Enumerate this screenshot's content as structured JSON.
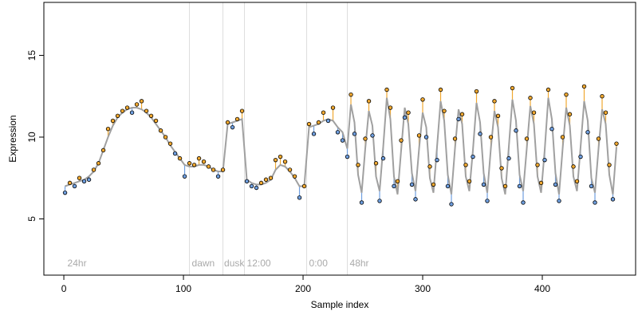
{
  "chart_data": {
    "type": "scatter",
    "x_label": "Sample index",
    "y_label": "Expression",
    "xlim": [
      -16.7,
      478
    ],
    "ylim": [
      1.56,
      18.24
    ],
    "xticks": [
      0,
      100,
      200,
      300,
      400
    ],
    "yticks": [
      5,
      10,
      15
    ],
    "x": [
      1,
      5,
      9,
      13,
      17,
      21,
      25,
      29,
      33,
      37,
      41,
      45,
      49,
      53,
      57,
      61,
      65,
      69,
      73,
      77,
      81,
      85,
      89,
      93,
      97,
      101,
      105,
      109,
      113,
      117,
      121,
      125,
      129,
      133,
      137,
      141,
      145,
      149,
      153,
      157,
      161,
      165,
      169,
      173,
      177,
      181,
      185,
      189,
      193,
      197,
      201,
      205,
      209,
      213,
      217,
      221,
      225,
      229,
      233,
      237,
      240,
      243,
      246,
      249,
      252,
      255,
      258,
      261,
      264,
      267,
      270,
      273,
      276,
      279,
      282,
      285,
      288,
      291,
      294,
      297,
      300,
      303,
      306,
      309,
      312,
      315,
      318,
      321,
      324,
      327,
      330,
      333,
      336,
      339,
      342,
      345,
      348,
      351,
      354,
      357,
      360,
      363,
      366,
      369,
      372,
      375,
      378,
      381,
      384,
      387,
      390,
      393,
      396,
      399,
      402,
      405,
      408,
      411,
      414,
      417,
      420,
      423,
      426,
      429,
      432,
      435,
      438,
      441,
      444,
      447,
      450,
      453,
      456,
      459,
      462
    ],
    "values": [
      6.6,
      7.2,
      7.0,
      7.5,
      7.3,
      7.4,
      8.0,
      8.4,
      9.2,
      10.5,
      11.0,
      11.3,
      11.6,
      11.8,
      11.5,
      12.0,
      12.2,
      11.6,
      11.3,
      11.0,
      10.4,
      10.0,
      9.6,
      9.0,
      8.7,
      7.6,
      8.4,
      8.3,
      8.7,
      8.5,
      8.2,
      8.0,
      7.6,
      8.0,
      10.9,
      10.6,
      11.1,
      11.6,
      7.3,
      7.0,
      6.9,
      7.2,
      7.4,
      7.5,
      8.6,
      8.8,
      8.5,
      8.0,
      7.6,
      6.3,
      7.0,
      10.8,
      10.2,
      10.9,
      11.5,
      11.0,
      11.8,
      10.3,
      9.8,
      8.8,
      12.6,
      10.2,
      8.3,
      6.0,
      9.9,
      12.2,
      10.1,
      8.4,
      6.1,
      8.7,
      12.9,
      11.8,
      7.0,
      7.3,
      9.8,
      11.2,
      11.5,
      7.1,
      6.2,
      10.1,
      12.3,
      10.0,
      8.2,
      7.1,
      8.6,
      12.9,
      11.6,
      7.0,
      5.9,
      9.9,
      11.1,
      11.4,
      8.3,
      7.3,
      8.8,
      12.8,
      10.2,
      7.1,
      6.1,
      10.0,
      12.2,
      11.3,
      8.1,
      7.0,
      8.7,
      13.0,
      10.4,
      7.0,
      6.0,
      9.9,
      12.4,
      11.5,
      8.3,
      7.2,
      8.6,
      12.9,
      10.5,
      7.1,
      6.1,
      10.0,
      12.6,
      11.4,
      8.2,
      7.3,
      8.8,
      13.1,
      10.3,
      7.0,
      6.0,
      9.9,
      12.5,
      11.5,
      8.3,
      6.2,
      9.6
    ],
    "fitted": [
      7.0,
      7.1,
      7.2,
      7.3,
      7.4,
      7.6,
      7.9,
      8.4,
      9.2,
      10.0,
      10.7,
      11.2,
      11.5,
      11.7,
      11.8,
      11.8,
      11.7,
      11.5,
      11.2,
      10.8,
      10.4,
      10.0,
      9.5,
      9.1,
      8.7,
      8.3,
      8.2,
      8.2,
      8.3,
      8.3,
      8.2,
      8.0,
      7.9,
      7.9,
      10.8,
      10.9,
      11.0,
      11.1,
      7.4,
      7.2,
      7.1,
      7.1,
      7.2,
      7.4,
      8.0,
      8.3,
      8.2,
      7.9,
      7.5,
      7.0,
      7.0,
      10.6,
      10.7,
      10.8,
      11.0,
      11.1,
      11.0,
      10.6,
      10.3,
      9.3,
      12.0,
      10.9,
      7.7,
      6.6,
      9.3,
      11.6,
      10.7,
      7.6,
      6.7,
      9.4,
      12.4,
      11.1,
      7.6,
      6.5,
      9.2,
      11.8,
      10.8,
      7.8,
      6.7,
      9.3,
      11.5,
      10.6,
      7.5,
      6.6,
      9.4,
      12.2,
      11.0,
      7.7,
      6.5,
      9.3,
      11.7,
      10.8,
      7.6,
      6.7,
      9.2,
      12.1,
      10.9,
      7.8,
      6.6,
      9.3,
      11.6,
      10.6,
      7.5,
      6.5,
      9.4,
      12.3,
      11.0,
      7.7,
      6.7,
      9.3,
      11.9,
      10.8,
      7.6,
      6.6,
      9.2,
      12.4,
      11.1,
      7.8,
      6.5,
      9.3,
      11.8,
      10.7,
      7.6,
      6.7,
      9.4,
      12.2,
      11.0,
      7.5,
      6.6,
      9.3,
      11.7,
      10.8,
      7.7,
      6.5,
      9.4
    ],
    "up_color": "#f0a830",
    "down_color": "#6f9fe0",
    "line_color": "#a0a0a0",
    "vline_color": "#dddddd",
    "vlines": [
      105,
      133,
      151,
      203,
      237
    ],
    "annotations": [
      {
        "x": 3,
        "y": 2.1,
        "text": "24hr"
      },
      {
        "x": 107,
        "y": 2.1,
        "text": "dawn"
      },
      {
        "x": 134,
        "y": 2.1,
        "text": "dusk"
      },
      {
        "x": 153,
        "y": 2.1,
        "text": "12:00"
      },
      {
        "x": 205,
        "y": 2.1,
        "text": "0:00"
      },
      {
        "x": 239,
        "y": 2.1,
        "text": "48hr"
      }
    ]
  }
}
